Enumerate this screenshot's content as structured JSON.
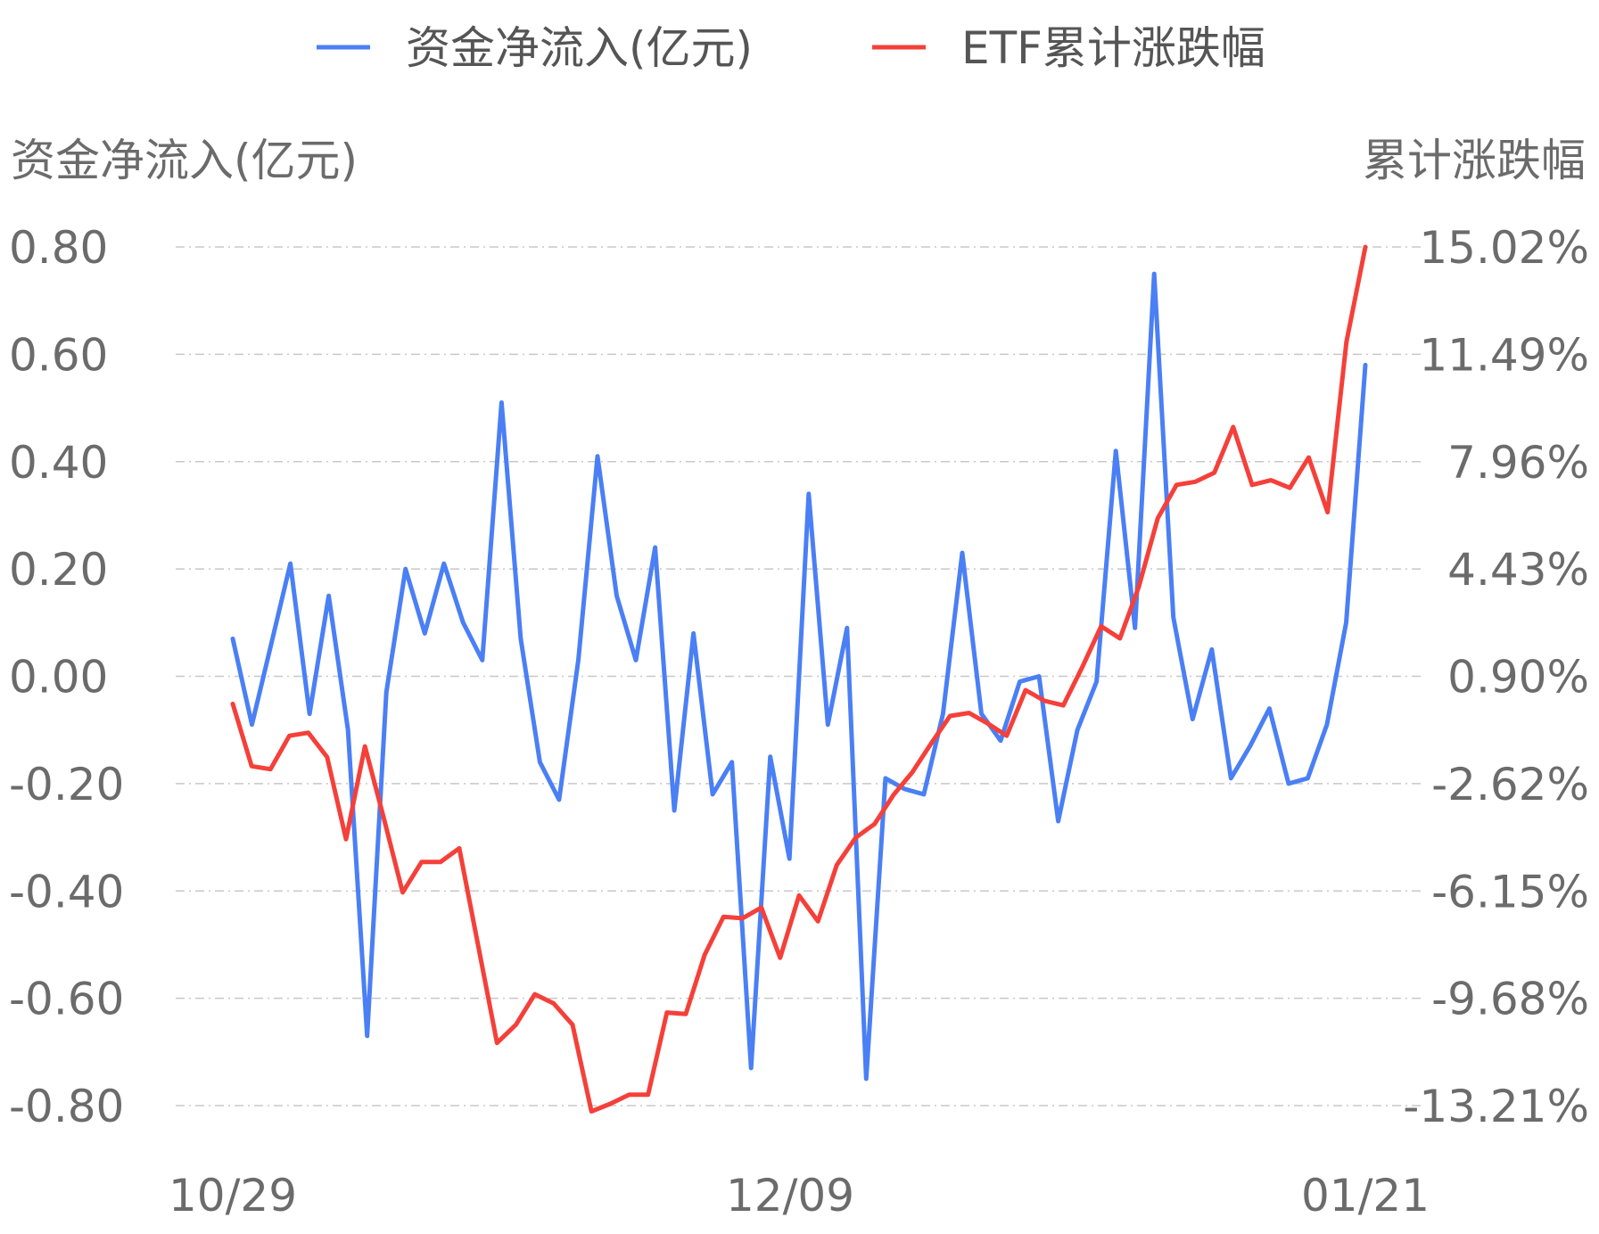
{
  "chart_data": {
    "type": "line",
    "colors": {
      "flow": "#4a7ff5",
      "return": "#f5403a"
    },
    "legend": [
      {
        "key": "flow",
        "label": "资金净流入(亿元)"
      },
      {
        "key": "return",
        "label": "ETF累计涨跌幅"
      }
    ],
    "left_axis_title": "资金净流入(亿元)",
    "right_axis_title": "累计涨跌幅",
    "left_ticks": [
      "0.80",
      "0.60",
      "0.40",
      "0.20",
      "0.00",
      "-0.20",
      "-0.40",
      "-0.60",
      "-0.80"
    ],
    "right_ticks": [
      "15.02%",
      "11.49%",
      "7.96%",
      "4.43%",
      "0.90%",
      "-2.62%",
      "-6.15%",
      "-9.68%",
      "-13.21%"
    ],
    "left_range": [
      -0.8,
      0.8
    ],
    "right_range": [
      -13.21,
      15.02
    ],
    "x_ticks": [
      "10/29",
      "12/09",
      "01/21"
    ],
    "grid": true,
    "legend_position": "top-center",
    "series": [
      {
        "name": "资金净流入(亿元)",
        "key": "flow",
        "axis": "left",
        "values": [
          0.07,
          -0.09,
          0.06,
          0.21,
          -0.07,
          0.15,
          -0.1,
          -0.67,
          -0.03,
          0.2,
          0.08,
          0.21,
          0.1,
          0.03,
          0.51,
          0.07,
          -0.16,
          -0.23,
          0.03,
          0.41,
          0.15,
          0.03,
          0.24,
          -0.25,
          0.08,
          -0.22,
          -0.16,
          -0.73,
          -0.15,
          -0.34,
          0.34,
          -0.09,
          0.09,
          -0.75,
          -0.19,
          -0.21,
          -0.22,
          -0.07,
          0.23,
          -0.07,
          -0.12,
          -0.01,
          0.0,
          -0.27,
          -0.1,
          -0.01,
          0.42,
          0.09,
          0.75,
          0.11,
          -0.08,
          0.05,
          -0.19,
          -0.13,
          -0.06,
          -0.2,
          -0.19,
          -0.09,
          0.1,
          0.58
        ]
      },
      {
        "name": "ETF累计涨跌幅",
        "key": "return",
        "axis": "right",
        "values": [
          0.0,
          -2.05,
          -2.15,
          -1.05,
          -0.95,
          -1.75,
          -4.45,
          -1.4,
          -3.75,
          -6.2,
          -5.2,
          -5.2,
          -4.75,
          -7.95,
          -11.15,
          -10.55,
          -9.55,
          -9.85,
          -10.55,
          -13.4,
          -13.15,
          -12.85,
          -12.85,
          -10.15,
          -10.2,
          -8.25,
          -7.0,
          -7.05,
          -6.7,
          -8.35,
          -6.3,
          -7.15,
          -5.3,
          -4.4,
          -3.95,
          -3.0,
          -2.25,
          -1.3,
          -0.4,
          -0.3,
          -0.65,
          -1.05,
          0.45,
          0.1,
          -0.05,
          1.2,
          2.55,
          2.15,
          3.85,
          6.1,
          7.2,
          7.3,
          7.6,
          9.1,
          7.2,
          7.35,
          7.1,
          8.1,
          6.3,
          11.9,
          15.02
        ]
      }
    ]
  }
}
